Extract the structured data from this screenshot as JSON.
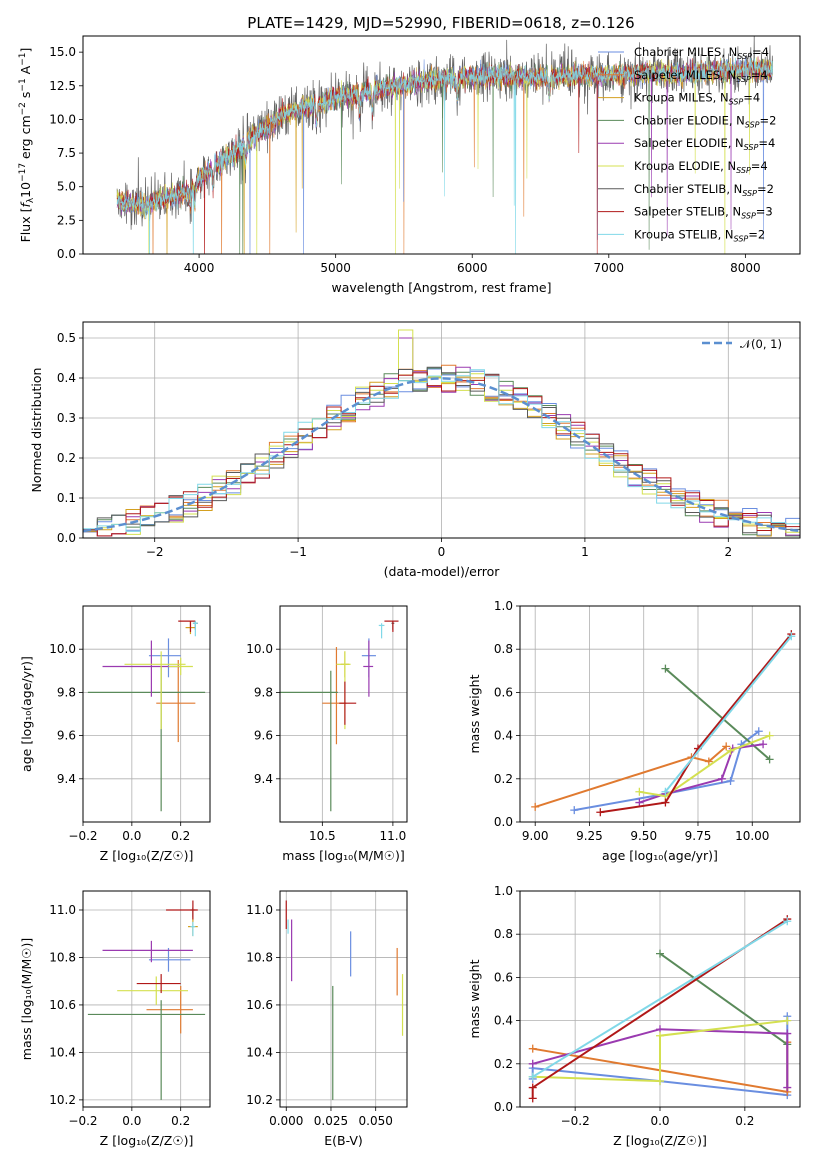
{
  "title": "PLATE=1429, MJD=52990, FIBERID=0618, z=0.126",
  "colors": {
    "Chabrier MILES": "#6a8ee0",
    "Salpeter MILES": "#e07a30",
    "Kroupa MILES": "#d4a020",
    "Chabrier ELODIE": "#5a8a5a",
    "Salpeter ELODIE": "#9a3ab0",
    "Kroupa ELODIE": "#d4e050",
    "Chabrier STELIB": "#5a5a5a",
    "Salpeter STELIB": "#b01818",
    "Kroupa STELIB": "#80d8e8",
    "gauss": "#5b8fd0"
  },
  "chart_data": [
    {
      "type": "line",
      "id": "spectrum",
      "title": "PLATE=1429, MJD=52990, FIBERID=0618, z=0.126",
      "xlabel": "wavelength [Angstrom, rest frame]",
      "ylabel_parts": [
        "Flux [",
        "f",
        "λ",
        "10",
        "−17",
        " erg cm",
        "−2",
        " s",
        "−1",
        " A",
        "−1",
        "]"
      ],
      "xlim": [
        3150,
        8400
      ],
      "ylim": [
        0,
        16.2
      ],
      "xticks": [
        4000,
        5000,
        6000,
        7000,
        8000
      ],
      "yticks": [
        0.0,
        2.5,
        5.0,
        7.5,
        10.0,
        12.5,
        15.0
      ],
      "ytick_labels": [
        "0.0",
        "2.5",
        "5.0",
        "7.5",
        "10.0",
        "12.5",
        "15.0"
      ],
      "x_range": [
        3400,
        8200
      ],
      "continuum": {
        "x": [
          3400,
          3500,
          3600,
          3700,
          3800,
          3900,
          4000,
          4100,
          4200,
          4300,
          4400,
          4500,
          4600,
          4700,
          4800,
          4900,
          5000,
          5100,
          5200,
          5300,
          5400,
          5500,
          5600,
          5700,
          5800,
          5900,
          6000,
          6200,
          6400,
          6600,
          6800,
          7000,
          7200,
          7400,
          7600,
          7800,
          8000,
          8200
        ],
        "y": [
          3.9,
          3.7,
          3.6,
          4.0,
          4.3,
          4.5,
          5.6,
          6.4,
          7.2,
          7.8,
          8.8,
          9.4,
          10.3,
          10.6,
          11.0,
          11.2,
          11.7,
          11.8,
          12.0,
          12.2,
          12.4,
          12.6,
          12.8,
          12.9,
          13.0,
          13.1,
          13.2,
          13.2,
          13.1,
          13.2,
          13.3,
          13.3,
          13.4,
          13.4,
          13.4,
          13.6,
          13.7,
          13.7
        ]
      },
      "legend": [
        {
          "name": "Chabrier MILES",
          "nssp": "4"
        },
        {
          "name": "Salpeter MILES",
          "nssp": "4"
        },
        {
          "name": "Kroupa MILES",
          "nssp": "4"
        },
        {
          "name": "Chabrier ELODIE",
          "nssp": "2"
        },
        {
          "name": "Salpeter ELODIE",
          "nssp": "4"
        },
        {
          "name": "Kroupa ELODIE",
          "nssp": "4"
        },
        {
          "name": "Chabrier STELIB",
          "nssp": "2"
        },
        {
          "name": "Salpeter STELIB",
          "nssp": "3"
        },
        {
          "name": "Kroupa STELIB",
          "nssp": "2"
        }
      ],
      "legend_prefix": "N",
      "legend_sub": "SSP",
      "legend_placement": "upper-right"
    },
    {
      "type": "histogram",
      "id": "residuals",
      "xlabel": "(data-model)/error",
      "ylabel": "Normed distribution",
      "xlim": [
        -2.5,
        2.5
      ],
      "ylim": [
        0,
        0.54
      ],
      "grid": true,
      "xticks": [
        -2,
        -1,
        0,
        1,
        2
      ],
      "xtick_labels": [
        "−2",
        "−1",
        "0",
        "1",
        "2"
      ],
      "yticks": [
        0.0,
        0.1,
        0.2,
        0.3,
        0.4,
        0.5
      ],
      "ytick_labels": [
        "0.0",
        "0.1",
        "0.2",
        "0.3",
        "0.4",
        "0.5"
      ],
      "bin_width": 0.1,
      "bin_start": -2.5,
      "gauss_label": "𝒩(0, 1)",
      "legend_placement": "upper-right"
    },
    {
      "type": "scatter",
      "id": "age-vs-Z",
      "xlabel": "Z [log₁₀(Z/Z☉)]",
      "ylabel": "age  [log₁₀(age/yr)]",
      "xlim": [
        -0.2,
        0.32
      ],
      "ylim": [
        9.2,
        10.2
      ],
      "xticks": [
        -0.2,
        0.0,
        0.2
      ],
      "xtick_labels": [
        "−0.2",
        "0.0",
        "0.2"
      ],
      "yticks": [
        9.4,
        9.6,
        9.8,
        10.0
      ],
      "ytick_labels": [
        "9.4",
        "9.6",
        "9.8",
        "10.0"
      ],
      "grid": true,
      "points": [
        {
          "model": "Chabrier MILES",
          "x": 0.15,
          "y": 9.97,
          "xerr": [
            0.08,
            0.05
          ],
          "yerr": [
            0.1,
            0.08
          ]
        },
        {
          "model": "Salpeter MILES",
          "x": 0.19,
          "y": 9.75,
          "xerr": [
            0.09,
            0.07
          ],
          "yerr": [
            0.18,
            0.2
          ]
        },
        {
          "model": "Kroupa MILES",
          "x": 0.24,
          "y": 10.1,
          "xerr": [
            0.02,
            0.02
          ],
          "yerr": [
            0.03,
            0.03
          ]
        },
        {
          "model": "Chabrier ELODIE",
          "x": 0.12,
          "y": 9.8,
          "xerr": [
            0.3,
            0.18
          ],
          "yerr": [
            0.55,
            0.12
          ]
        },
        {
          "model": "Salpeter ELODIE",
          "x": 0.08,
          "y": 9.92,
          "xerr": [
            0.2,
            0.12
          ],
          "yerr": [
            0.14,
            0.12
          ]
        },
        {
          "model": "Kroupa ELODIE",
          "x": 0.12,
          "y": 9.93,
          "xerr": [
            0.15,
            0.1
          ],
          "yerr": [
            0.3,
            0.06
          ]
        },
        {
          "model": "Chabrier STELIB",
          "x": 0.26,
          "y": 10.12,
          "xerr": [
            0.01,
            0.01
          ],
          "yerr": [
            0.03,
            0.01
          ]
        },
        {
          "model": "Salpeter STELIB",
          "x": 0.24,
          "y": 10.13,
          "xerr": [
            0.05,
            0.02
          ],
          "yerr": [
            0.05,
            0.0
          ]
        },
        {
          "model": "Kroupa STELIB",
          "x": 0.26,
          "y": 10.12,
          "xerr": [
            0.01,
            0.01
          ],
          "yerr": [
            0.06,
            0.01
          ]
        },
        {
          "model": "Kroupa ELODIE",
          "x": 0.2,
          "y": 9.92,
          "xerr": [
            0.05,
            0.05
          ],
          "yerr": [
            0.04,
            0.04
          ]
        }
      ]
    },
    {
      "type": "scatter",
      "id": "age-vs-mass",
      "xlabel": "mass [log₁₀(M/M☉)]",
      "ylabel": "",
      "xlim": [
        10.2,
        11.1
      ],
      "ylim": [
        9.2,
        10.2
      ],
      "xticks": [
        10.5,
        11.0
      ],
      "xtick_labels": [
        "10.5",
        "11.0"
      ],
      "yticks": [
        9.4,
        9.6,
        9.8,
        10.0
      ],
      "ytick_labels": [
        "9.4",
        "9.6",
        "9.8",
        "10.0"
      ],
      "grid": true,
      "points": [
        {
          "model": "Chabrier MILES",
          "x": 10.83,
          "y": 9.97,
          "xerr": [
            0.05,
            0.05
          ],
          "yerr": [
            0.1,
            0.08
          ]
        },
        {
          "model": "Salpeter MILES",
          "x": 10.6,
          "y": 9.75,
          "xerr": [
            0.1,
            0.07
          ],
          "yerr": [
            0.19,
            0.26
          ]
        },
        {
          "model": "Kroupa MILES",
          "x": 10.66,
          "y": 9.93,
          "xerr": [
            0.03,
            0.03
          ],
          "yerr": [
            0.06,
            0.06
          ]
        },
        {
          "model": "Chabrier ELODIE",
          "x": 10.56,
          "y": 9.8,
          "xerr": [
            0.38,
            0.05
          ],
          "yerr": [
            0.55,
            0.1
          ]
        },
        {
          "model": "Salpeter ELODIE",
          "x": 10.83,
          "y": 9.92,
          "xerr": [
            0.04,
            0.03
          ],
          "yerr": [
            0.14,
            0.12
          ]
        },
        {
          "model": "Kroupa ELODIE",
          "x": 10.66,
          "y": 9.93,
          "xerr": [
            0.06,
            0.04
          ],
          "yerr": [
            0.3,
            0.06
          ]
        },
        {
          "model": "Chabrier STELIB",
          "x": 11.0,
          "y": 10.12,
          "xerr": [
            0.01,
            0.01
          ],
          "yerr": [
            0.03,
            0.01
          ]
        },
        {
          "model": "Salpeter STELIB",
          "x": 11.0,
          "y": 10.13,
          "xerr": [
            0.06,
            0.04
          ],
          "yerr": [
            0.05,
            0.0
          ]
        },
        {
          "model": "Kroupa STELIB",
          "x": 10.92,
          "y": 10.11,
          "xerr": [
            0.02,
            0.02
          ],
          "yerr": [
            0.06,
            0.01
          ]
        },
        {
          "model": "Salpeter STELIB",
          "x": 10.66,
          "y": 9.75,
          "xerr": [
            0.04,
            0.08
          ],
          "yerr": [
            0.1,
            0.1
          ]
        }
      ]
    },
    {
      "type": "line",
      "id": "weight-vs-age",
      "xlabel": "age  [log₁₀(age/yr)]",
      "ylabel": "mass weight",
      "xlim": [
        8.93,
        10.22
      ],
      "ylim": [
        0,
        1.0
      ],
      "xticks": [
        9.0,
        9.25,
        9.5,
        9.75,
        10.0
      ],
      "xtick_labels": [
        "9.00",
        "9.25",
        "9.50",
        "9.75",
        "10.00"
      ],
      "yticks": [
        0.0,
        0.2,
        0.4,
        0.6,
        0.8,
        1.0
      ],
      "ytick_labels": [
        "0.0",
        "0.2",
        "0.4",
        "0.6",
        "0.8",
        "1.0"
      ],
      "grid": true,
      "series": [
        {
          "model": "Chabrier MILES",
          "x": [
            9.18,
            9.6,
            9.9,
            9.95,
            10.03
          ],
          "y": [
            0.055,
            0.13,
            0.19,
            0.36,
            0.42
          ]
        },
        {
          "model": "Salpeter MILES",
          "x": [
            9.0,
            9.72,
            9.8,
            9.88
          ],
          "y": [
            0.07,
            0.3,
            0.28,
            0.35
          ]
        },
        {
          "model": "Chabrier ELODIE",
          "x": [
            9.6,
            10.08
          ],
          "y": [
            0.71,
            0.29
          ]
        },
        {
          "model": "Salpeter ELODIE",
          "x": [
            9.48,
            9.6,
            9.86,
            9.91,
            10.05
          ],
          "y": [
            0.09,
            0.13,
            0.2,
            0.34,
            0.36
          ]
        },
        {
          "model": "Kroupa ELODIE",
          "x": [
            9.48,
            9.6,
            9.9,
            10.08
          ],
          "y": [
            0.14,
            0.12,
            0.33,
            0.4
          ]
        },
        {
          "model": "Salpeter STELIB",
          "x": [
            9.3,
            9.6,
            9.75,
            10.18
          ],
          "y": [
            0.045,
            0.09,
            0.34,
            0.87
          ]
        },
        {
          "model": "Kroupa STELIB",
          "x": [
            9.6,
            10.18
          ],
          "y": [
            0.14,
            0.86
          ]
        }
      ]
    },
    {
      "type": "scatter",
      "id": "mass-vs-Z",
      "xlabel": "Z [log₁₀(Z/Z☉)]",
      "ylabel": "mass [log₁₀(M/M☉)]",
      "xlim": [
        -0.2,
        0.32
      ],
      "ylim": [
        10.17,
        11.08
      ],
      "xticks": [
        -0.2,
        0.0,
        0.2
      ],
      "xtick_labels": [
        "−0.2",
        "0.0",
        "0.2"
      ],
      "yticks": [
        10.2,
        10.4,
        10.6,
        10.8,
        11.0
      ],
      "ytick_labels": [
        "10.2",
        "10.4",
        "10.6",
        "10.8",
        "11.0"
      ],
      "grid": true,
      "points": [
        {
          "model": "Chabrier MILES",
          "x": 0.15,
          "y": 10.79,
          "xerr": [
            0.08,
            0.09
          ],
          "yerr": [
            0.05,
            0.05
          ]
        },
        {
          "model": "Salpeter MILES",
          "x": 0.2,
          "y": 10.58,
          "xerr": [
            0.14,
            0.05
          ],
          "yerr": [
            0.1,
            0.1
          ]
        },
        {
          "model": "Kroupa MILES",
          "x": 0.25,
          "y": 10.93,
          "xerr": [
            0.02,
            0.02
          ],
          "yerr": [
            0.04,
            0.04
          ]
        },
        {
          "model": "Chabrier ELODIE",
          "x": 0.12,
          "y": 10.56,
          "xerr": [
            0.3,
            0.18
          ],
          "yerr": [
            0.36,
            0.06
          ]
        },
        {
          "model": "Salpeter ELODIE",
          "x": 0.08,
          "y": 10.83,
          "xerr": [
            0.2,
            0.17
          ],
          "yerr": [
            0.05,
            0.04
          ]
        },
        {
          "model": "Kroupa ELODIE",
          "x": 0.1,
          "y": 10.66,
          "xerr": [
            0.16,
            0.13
          ],
          "yerr": [
            0.06,
            0.06
          ]
        },
        {
          "model": "Chabrier STELIB",
          "x": 0.25,
          "y": 11.0,
          "xerr": [
            0.01,
            0.01
          ],
          "yerr": [
            0.03,
            0.01
          ]
        },
        {
          "model": "Salpeter STELIB",
          "x": 0.25,
          "y": 11.0,
          "xerr": [
            0.11,
            0.02
          ],
          "yerr": [
            0.04,
            0.04
          ]
        },
        {
          "model": "Kroupa STELIB",
          "x": 0.25,
          "y": 10.93,
          "xerr": [
            0.01,
            0.01
          ],
          "yerr": [
            0.04,
            0.02
          ]
        },
        {
          "model": "Salpeter STELIB",
          "x": 0.12,
          "y": 10.69,
          "xerr": [
            0.1,
            0.08
          ],
          "yerr": [
            0.04,
            0.04
          ]
        }
      ]
    },
    {
      "type": "scatter",
      "id": "mass-vs-ebv",
      "xlabel": "E(B-V)",
      "ylabel": "",
      "xlim": [
        -0.0035,
        0.0675
      ],
      "ylim": [
        10.17,
        11.08
      ],
      "xticks": [
        0.0,
        0.025,
        0.05
      ],
      "xtick_labels": [
        "0.000",
        "0.025",
        "0.050"
      ],
      "yticks": [
        10.2,
        10.4,
        10.6,
        10.8,
        11.0
      ],
      "ytick_labels": [
        "10.2",
        "10.4",
        "10.6",
        "10.8",
        "11.0"
      ],
      "grid": true,
      "points": [
        {
          "model": "Chabrier MILES",
          "x": 0.036,
          "y": 10.81,
          "yerr": [
            0.09,
            0.1
          ]
        },
        {
          "model": "Salpeter ELODIE",
          "x": 0.003,
          "y": 10.83,
          "yerr": [
            0.13,
            0.13
          ]
        },
        {
          "model": "Chabrier ELODIE",
          "x": 0.026,
          "y": 10.44,
          "yerr": [
            0.24,
            0.24
          ]
        },
        {
          "model": "Kroupa ELODIE",
          "x": 0.065,
          "y": 10.6,
          "yerr": [
            0.13,
            0.13
          ]
        },
        {
          "model": "Salpeter STELIB",
          "x": 0.0,
          "y": 10.98,
          "yerr": [
            0.06,
            0.06
          ]
        },
        {
          "model": "Kroupa STELIB",
          "x": 0.001,
          "y": 10.93,
          "yerr": [
            0.03,
            0.03
          ]
        },
        {
          "model": "Salpeter MILES",
          "x": 0.062,
          "y": 10.74,
          "yerr": [
            0.1,
            0.1
          ]
        }
      ]
    },
    {
      "type": "line",
      "id": "weight-vs-Z",
      "xlabel": "Z [log₁₀(Z/Z☉)]",
      "ylabel": "mass weight",
      "xlim": [
        -0.33,
        0.33
      ],
      "ylim": [
        0,
        1.0
      ],
      "xticks": [
        -0.2,
        0.0,
        0.2
      ],
      "xtick_labels": [
        "−0.2",
        "0.0",
        "0.2"
      ],
      "yticks": [
        0.0,
        0.2,
        0.4,
        0.6,
        0.8,
        1.0
      ],
      "ytick_labels": [
        "0.0",
        "0.2",
        "0.4",
        "0.6",
        "0.8",
        "1.0"
      ],
      "grid": true,
      "series": [
        {
          "model": "Chabrier MILES",
          "x": [
            -0.3,
            -0.3,
            0.0,
            0.3,
            0.3
          ],
          "y": [
            0.13,
            0.18,
            0.12,
            0.055,
            0.42
          ]
        },
        {
          "model": "Salpeter MILES",
          "x": [
            -0.3,
            0.3,
            0.3
          ],
          "y": [
            0.27,
            0.07,
            0.3
          ]
        },
        {
          "model": "Chabrier ELODIE",
          "x": [
            0.0,
            0.3
          ],
          "y": [
            0.71,
            0.29
          ]
        },
        {
          "model": "Salpeter ELODIE",
          "x": [
            -0.3,
            0.0,
            0.3,
            0.3
          ],
          "y": [
            0.2,
            0.36,
            0.34,
            0.09
          ]
        },
        {
          "model": "Kroupa ELODIE",
          "x": [
            -0.3,
            0.0,
            0.0,
            0.3
          ],
          "y": [
            0.14,
            0.12,
            0.33,
            0.4
          ]
        },
        {
          "model": "Salpeter STELIB",
          "x": [
            -0.3,
            -0.3,
            0.3
          ],
          "y": [
            0.04,
            0.09,
            0.87
          ]
        },
        {
          "model": "Kroupa STELIB",
          "x": [
            -0.3,
            0.3
          ],
          "y": [
            0.14,
            0.86
          ]
        }
      ]
    }
  ]
}
